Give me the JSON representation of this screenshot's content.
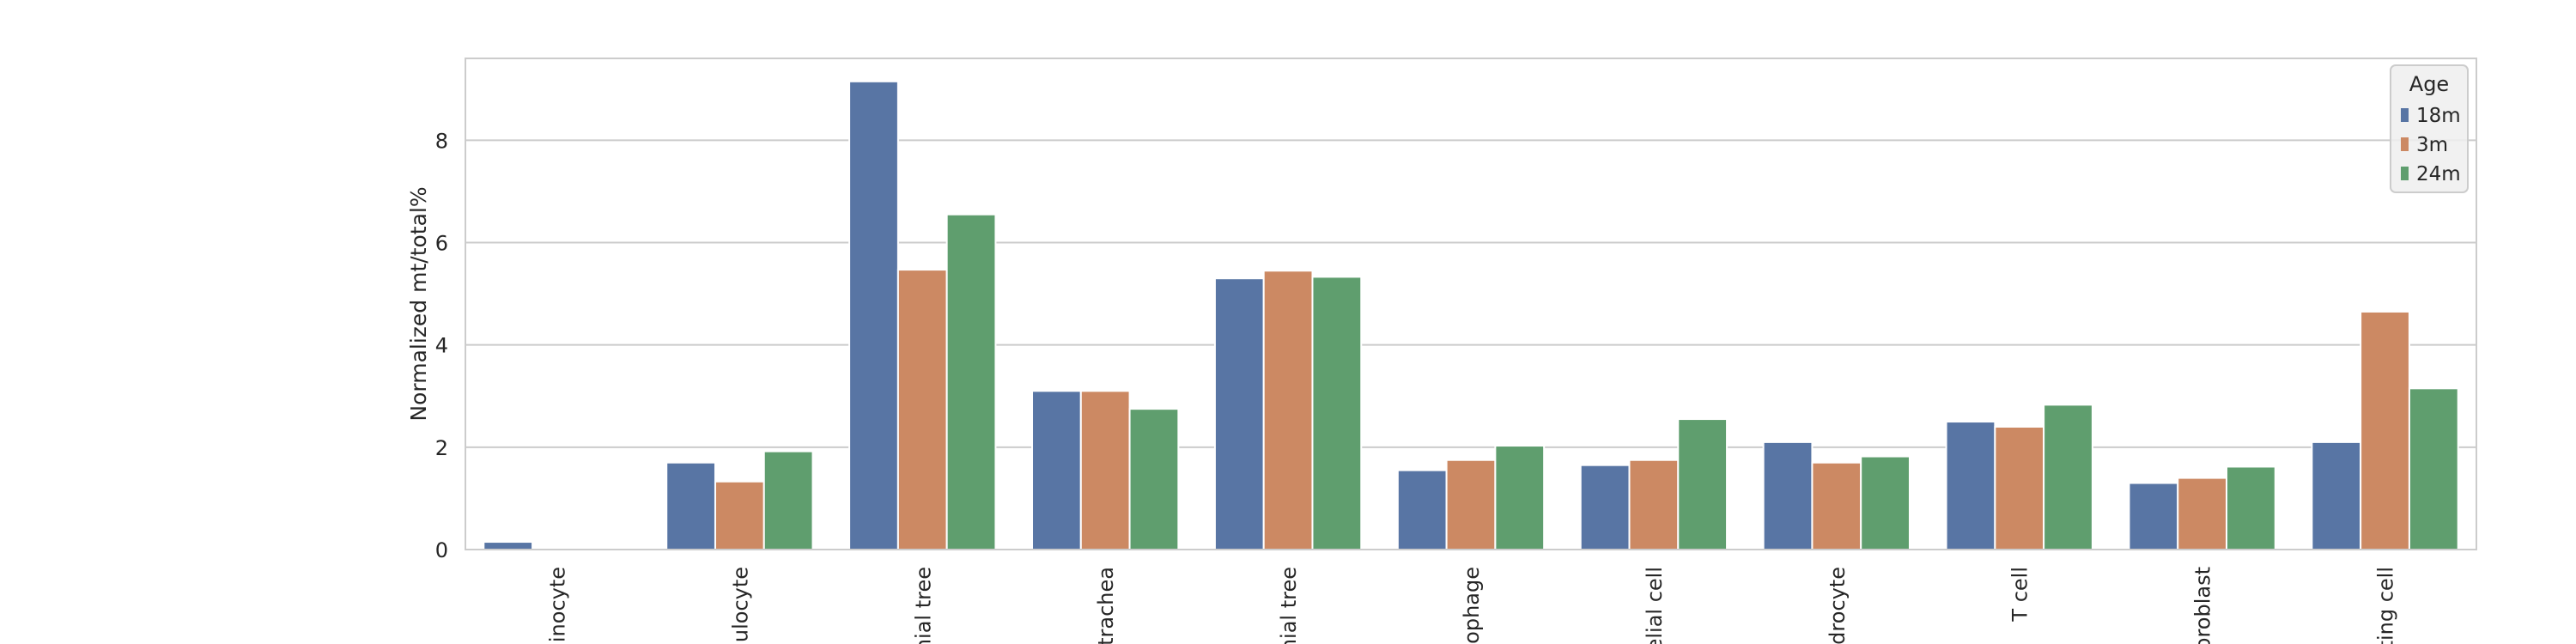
{
  "chart_data": {
    "type": "bar",
    "ylabel": "Normalized mt/total%",
    "xlabel": "",
    "ylim": [
      0,
      9.6
    ],
    "yticks": [
      0,
      2,
      4,
      6,
      8
    ],
    "grid": true,
    "categories": [
      "inocyte",
      "ulocyte",
      "hial tree",
      "trachea",
      "hial tree",
      "ophage",
      "elial cell",
      "drocyte",
      "T cell",
      "broblast",
      "ting cell"
    ],
    "legend": {
      "title": "Age",
      "position": "top-right"
    },
    "series": [
      {
        "name": "18m",
        "color": "#5875a4",
        "values": [
          0.15,
          1.7,
          9.15,
          3.1,
          5.3,
          1.55,
          1.65,
          2.1,
          2.5,
          1.3,
          2.1
        ]
      },
      {
        "name": "3m",
        "color": "#cc8963",
        "values": [
          null,
          1.33,
          5.47,
          3.1,
          5.45,
          1.75,
          1.75,
          1.7,
          2.4,
          1.4,
          4.65
        ]
      },
      {
        "name": "24m",
        "color": "#5f9e6e",
        "values": [
          null,
          1.92,
          6.55,
          2.75,
          5.33,
          2.03,
          2.55,
          1.82,
          2.83,
          1.62,
          3.15
        ]
      }
    ]
  }
}
